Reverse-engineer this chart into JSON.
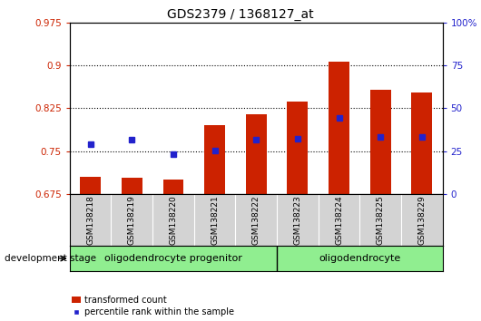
{
  "title": "GDS2379 / 1368127_at",
  "samples": [
    "GSM138218",
    "GSM138219",
    "GSM138220",
    "GSM138221",
    "GSM138222",
    "GSM138223",
    "GSM138224",
    "GSM138225",
    "GSM138229"
  ],
  "bar_values": [
    0.705,
    0.703,
    0.7,
    0.795,
    0.814,
    0.837,
    0.907,
    0.858,
    0.852
  ],
  "dot_values": [
    0.762,
    0.77,
    0.745,
    0.752,
    0.77,
    0.772,
    0.808,
    0.775,
    0.775
  ],
  "ylim_left": [
    0.675,
    0.975
  ],
  "yticks_left": [
    0.675,
    0.75,
    0.825,
    0.9,
    0.975
  ],
  "ytick_labels_left": [
    "0.675",
    "0.75",
    "0.825",
    "0.9",
    "0.975"
  ],
  "ylim_right": [
    0,
    100
  ],
  "yticks_right": [
    0,
    25,
    50,
    75,
    100
  ],
  "ytick_labels_right": [
    "0",
    "25",
    "50",
    "75",
    "100%"
  ],
  "bar_color": "#cc2200",
  "dot_color": "#2222cc",
  "bar_width": 0.5,
  "group1_label": "oligodendrocyte progenitor",
  "group2_label": "oligodendrocyte",
  "group_label_prefix": "development stage",
  "group_bg_color": "#90ee90",
  "tick_area_color": "#d3d3d3",
  "legend_bar_label": "transformed count",
  "legend_dot_label": "percentile rank within the sample",
  "grid_yticks": [
    0.75,
    0.825,
    0.9
  ],
  "n_group1": 5,
  "n_group2": 4
}
